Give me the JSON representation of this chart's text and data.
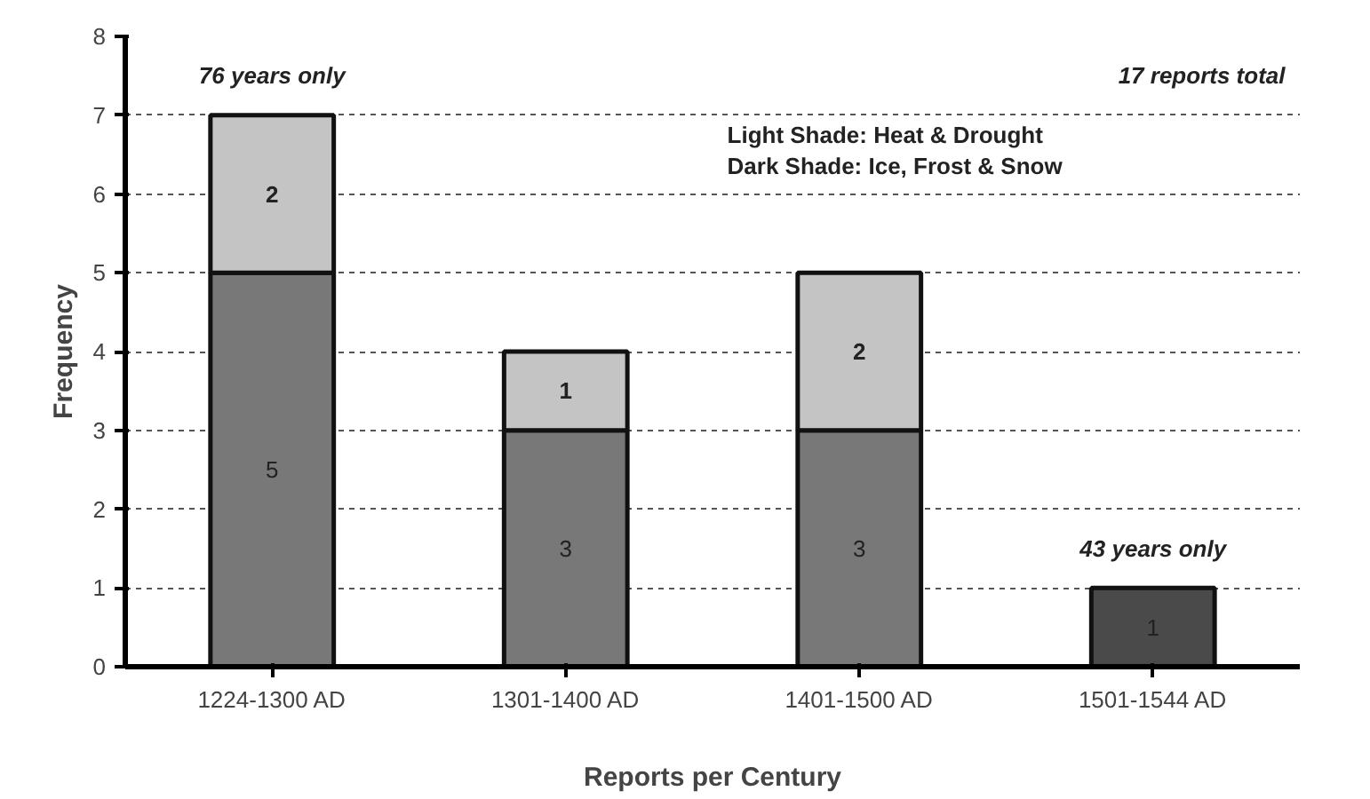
{
  "chart_data": {
    "type": "bar",
    "stacked": true,
    "categories": [
      "1224-1300 AD",
      "1301-1400 AD",
      "1401-1500 AD",
      "1501-1544 AD"
    ],
    "series": [
      {
        "colors": [
          "#787878",
          "#787878",
          "#787878",
          "#4a4a4a"
        ],
        "values": [
          5,
          3,
          3,
          1
        ]
      },
      {
        "color": "#c4c4c4",
        "values": [
          2,
          1,
          2,
          null
        ]
      }
    ],
    "xlabel": "Reports per Century",
    "ylabel": "Frequency",
    "ylim": [
      0,
      8
    ],
    "yticks": [
      0,
      1,
      2,
      3,
      4,
      5,
      6,
      7,
      8
    ],
    "grid": "y",
    "data_labels": true,
    "annotations": [
      "76 years only",
      "17 reports total",
      "43 years only",
      "Light Shade: Heat & Drought",
      "Dark Shade: Ice, Frost & Snow"
    ]
  }
}
